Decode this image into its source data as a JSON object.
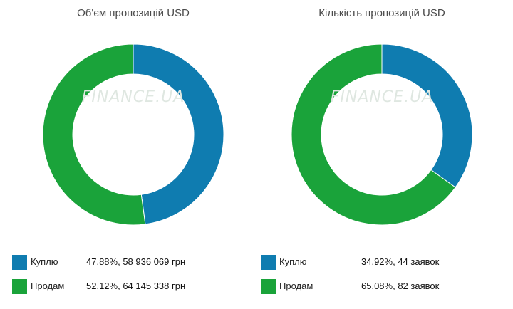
{
  "colors": {
    "buy": "#0f7cb0",
    "sell": "#1aa33a"
  },
  "chart_data": [
    {
      "type": "pie",
      "title": "Об'єм пропозицій USD",
      "categories": [
        "Куплю",
        "Продам"
      ],
      "values": [
        47.88,
        52.12
      ],
      "labels": [
        "47.88%, 58 936 069 грн",
        "52.12%, 64 145 338 грн"
      ],
      "watermark": "FINANCE.UA"
    },
    {
      "type": "pie",
      "title": "Кількість пропозицій USD",
      "categories": [
        "Куплю",
        "Продам"
      ],
      "values": [
        34.92,
        65.08
      ],
      "labels": [
        "34.92%, 44 заявок",
        "65.08%, 82 заявок"
      ],
      "watermark": "FINANCE.UA"
    }
  ]
}
